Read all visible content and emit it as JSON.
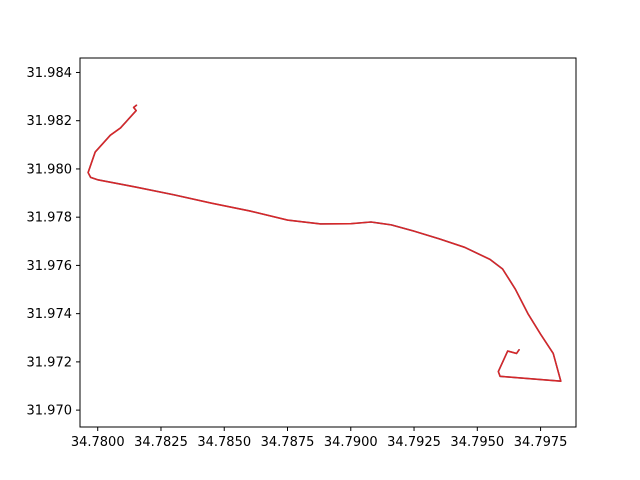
{
  "chart_data": {
    "type": "line",
    "title": "",
    "xlabel": "",
    "ylabel": "",
    "xlim": [
      34.7793,
      34.7989
    ],
    "ylim": [
      31.9693,
      31.9846
    ],
    "xticks": [
      34.78,
      34.7825,
      34.785,
      34.7875,
      34.79,
      34.7925,
      34.795,
      34.7975
    ],
    "xtick_labels": [
      "34.7800",
      "34.7825",
      "34.7850",
      "34.7875",
      "34.7900",
      "34.7925",
      "34.7950",
      "34.7975"
    ],
    "yticks": [
      31.97,
      31.972,
      31.974,
      31.976,
      31.978,
      31.98,
      31.982,
      31.984
    ],
    "ytick_labels": [
      "31.970",
      "31.972",
      "31.974",
      "31.976",
      "31.978",
      "31.980",
      "31.982",
      "31.984"
    ],
    "grid": false,
    "legend": "none",
    "series": [
      {
        "color": "#1f77b4",
        "width": 1.5,
        "points": [
          [
            34.78153,
            31.98264
          ],
          [
            34.78142,
            31.98255
          ],
          [
            34.78152,
            31.98242
          ],
          [
            34.7809,
            31.9817
          ],
          [
            34.7805,
            31.9814
          ],
          [
            34.7799,
            31.9807
          ],
          [
            34.77962,
            31.97985
          ],
          [
            34.77972,
            31.97965
          ],
          [
            34.78,
            31.97955
          ],
          [
            34.7815,
            31.97925
          ],
          [
            34.783,
            31.97893
          ],
          [
            34.7845,
            31.97858
          ],
          [
            34.786,
            31.97826
          ],
          [
            34.7875,
            31.97788
          ],
          [
            34.7888,
            31.97772
          ],
          [
            34.79,
            31.97773
          ],
          [
            34.7908,
            31.9778
          ],
          [
            34.7916,
            31.97768
          ],
          [
            34.7925,
            31.97742
          ],
          [
            34.7935,
            31.9771
          ],
          [
            34.7945,
            31.97675
          ],
          [
            34.7955,
            31.97625
          ],
          [
            34.796,
            31.97585
          ],
          [
            34.7965,
            31.97502
          ],
          [
            34.797,
            31.974
          ],
          [
            34.7975,
            31.97315
          ],
          [
            34.798,
            31.97235
          ],
          [
            34.7983,
            31.9712
          ],
          [
            34.7959,
            31.9714
          ],
          [
            34.79583,
            31.9716
          ],
          [
            34.7962,
            31.97245
          ],
          [
            34.79655,
            31.97235
          ],
          [
            34.79665,
            31.9725
          ]
        ]
      },
      {
        "color": "#d62728",
        "width": 1.6,
        "points": [
          [
            34.78153,
            31.98264
          ],
          [
            34.78142,
            31.98255
          ],
          [
            34.78152,
            31.98242
          ],
          [
            34.7809,
            31.9817
          ],
          [
            34.7805,
            31.9814
          ],
          [
            34.7799,
            31.9807
          ],
          [
            34.77962,
            31.97985
          ],
          [
            34.77972,
            31.97965
          ],
          [
            34.78,
            31.97955
          ],
          [
            34.7815,
            31.97925
          ],
          [
            34.783,
            31.97893
          ],
          [
            34.7845,
            31.97858
          ],
          [
            34.786,
            31.97826
          ],
          [
            34.7875,
            31.97788
          ],
          [
            34.7888,
            31.97772
          ],
          [
            34.79,
            31.97773
          ],
          [
            34.7908,
            31.9778
          ],
          [
            34.7916,
            31.97768
          ],
          [
            34.7925,
            31.97742
          ],
          [
            34.7935,
            31.9771
          ],
          [
            34.7945,
            31.97675
          ],
          [
            34.7955,
            31.97625
          ],
          [
            34.796,
            31.97585
          ],
          [
            34.7965,
            31.97502
          ],
          [
            34.797,
            31.974
          ],
          [
            34.7975,
            31.97315
          ],
          [
            34.798,
            31.97235
          ],
          [
            34.7983,
            31.9712
          ],
          [
            34.7959,
            31.9714
          ],
          [
            34.79583,
            31.9716
          ],
          [
            34.7962,
            31.97245
          ],
          [
            34.79655,
            31.97235
          ],
          [
            34.79665,
            31.9725
          ]
        ]
      }
    ]
  }
}
